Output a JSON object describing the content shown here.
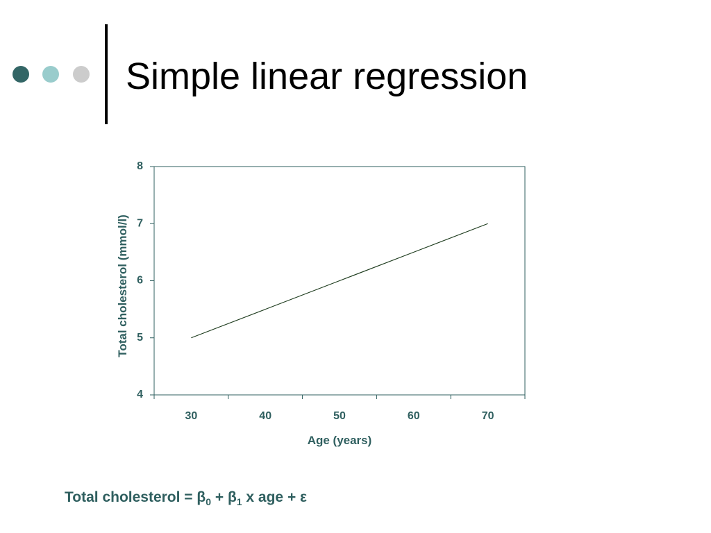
{
  "slide": {
    "title": "Simple linear regression",
    "equation": [
      "Total cholesterol = β",
      "0",
      " + β",
      "1",
      " x age + ε"
    ]
  },
  "chart_data": {
    "type": "line",
    "x_label": "Age (years)",
    "y_label": "Total cholesterol (mmol/l)",
    "categories": [
      "30",
      "40",
      "50",
      "60",
      "70"
    ],
    "values": [
      5,
      5.5,
      6,
      6.5,
      7
    ],
    "color": "#1f3d1f",
    "ylim": [
      4,
      8
    ],
    "yticks": [
      4,
      5,
      6,
      7,
      8
    ]
  }
}
